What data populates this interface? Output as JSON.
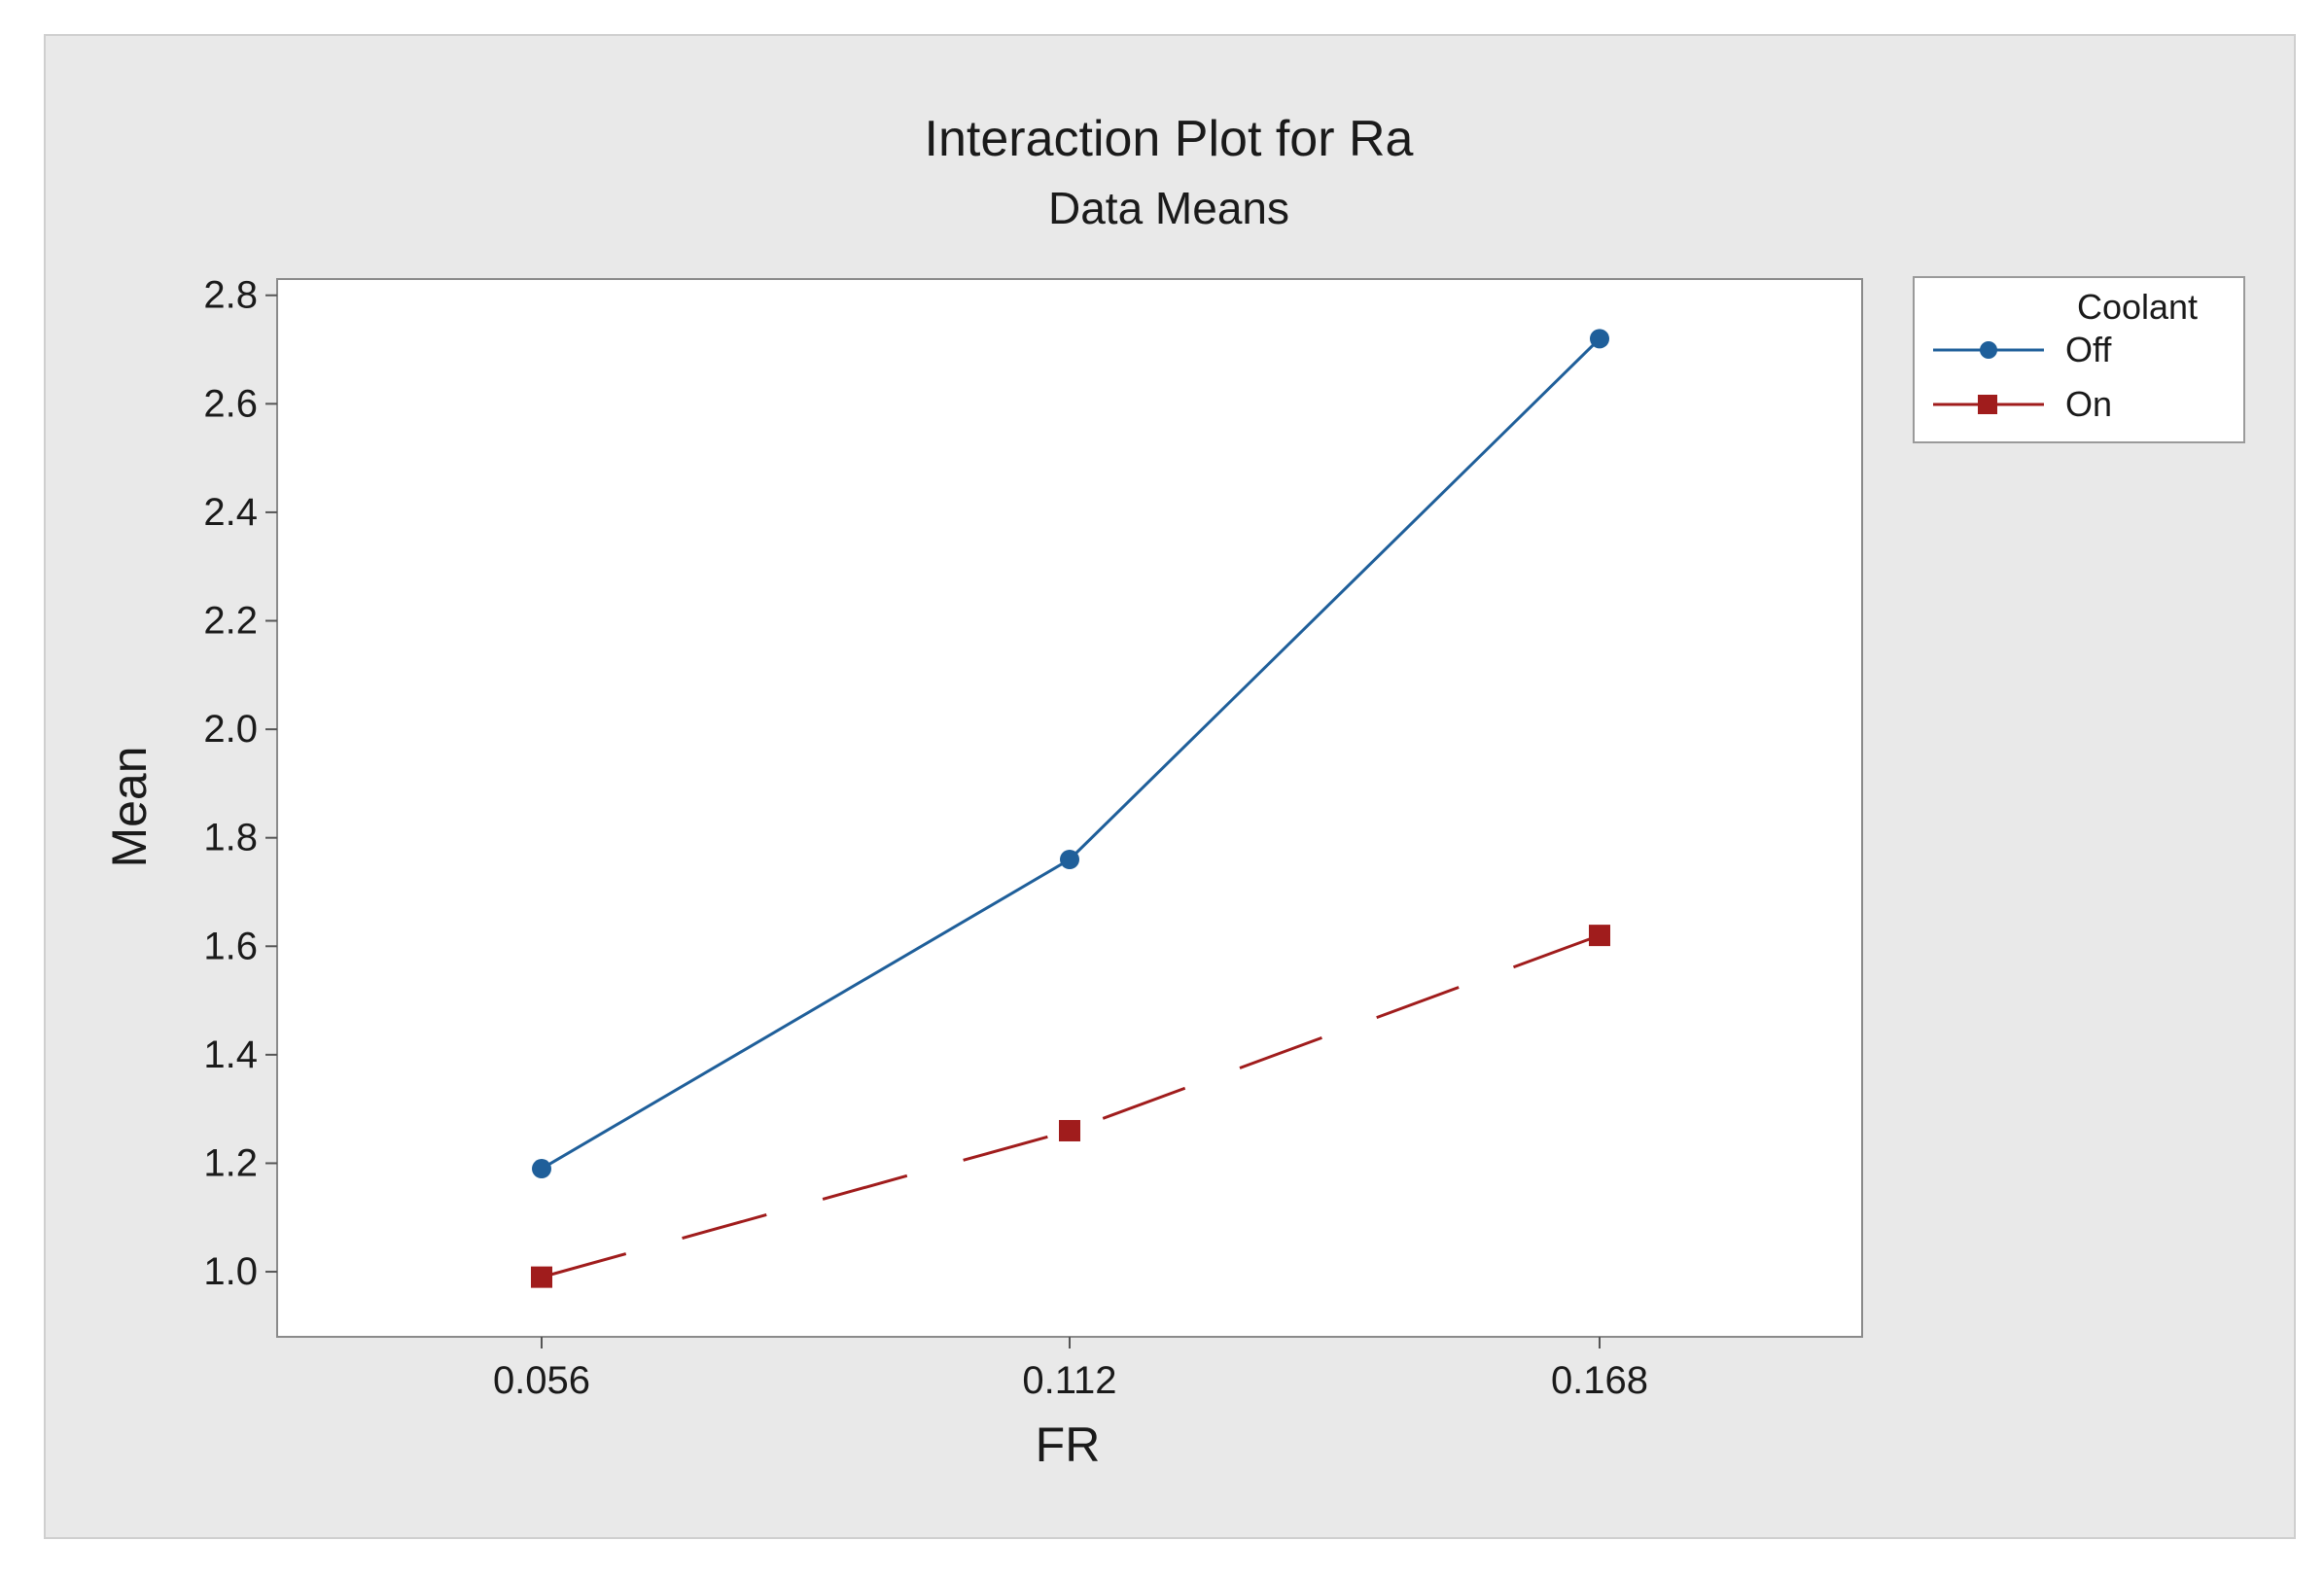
{
  "colors": {
    "off": "#1f5f9a",
    "on": "#a01c1c",
    "background": "#e9e9e9",
    "plot_background": "#ffffff"
  },
  "chart_data": {
    "type": "line",
    "title": "Interaction Plot for Ra",
    "subtitle": "Data Means",
    "xlabel": "FR",
    "ylabel": "Mean",
    "categories": [
      "0.056",
      "0.112",
      "0.168"
    ],
    "x_ticks": [
      "0.056",
      "0.112",
      "0.168"
    ],
    "y_ticks": [
      "1.0",
      "1.2",
      "1.4",
      "1.6",
      "1.8",
      "2.0",
      "2.2",
      "2.4",
      "2.6",
      "2.8"
    ],
    "ylim": [
      0.88,
      2.83
    ],
    "grid": false,
    "legend": {
      "title": "Coolant",
      "position": "right"
    },
    "series": [
      {
        "name": "Off",
        "values": [
          1.19,
          1.76,
          2.72
        ],
        "line_style": "solid",
        "marker": "circle",
        "color": "#1f5f9a"
      },
      {
        "name": "On",
        "values": [
          0.99,
          1.26,
          1.62
        ],
        "line_style": "dashed",
        "marker": "square",
        "color": "#a01c1c"
      }
    ]
  }
}
